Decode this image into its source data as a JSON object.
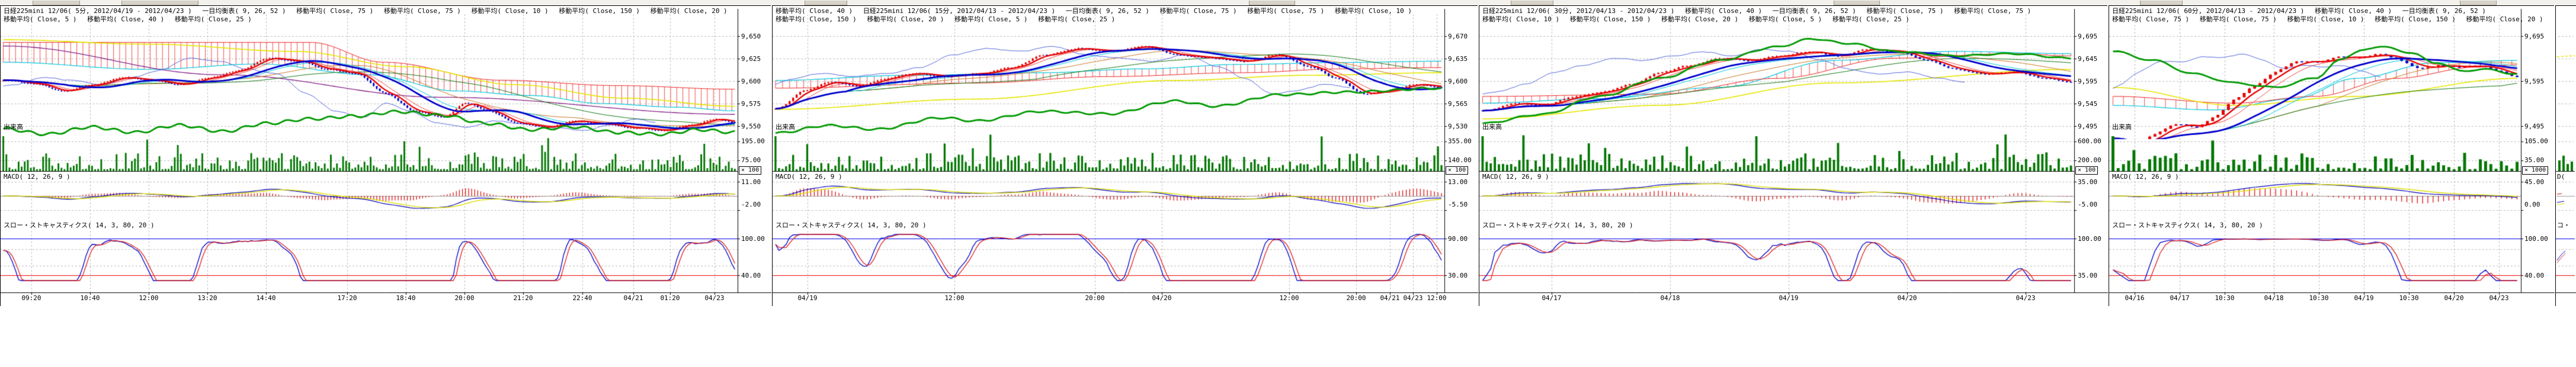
{
  "instrument": "日経225mini 12/06",
  "colors": {
    "candle_up": "#e60000",
    "candle_down": "#0000cc",
    "volume_bar": "#007700",
    "ma_green": "#009900",
    "ma_yellow": "#e6e600",
    "ma_purple": "#882288",
    "cloud_hatch": "#ee2222",
    "cloud_edge": "#00c8dc",
    "macd_line": "#0000bb",
    "macd_signal": "#dddd00",
    "macd_hist": "#dd0000",
    "stoch_k": "#0000cc",
    "stoch_d": "#dd2222",
    "band_top": "#0000ee",
    "band_bottom": "#ee0000",
    "grid": "#bcbcbc"
  },
  "panels": [
    {
      "title_line1": "日経225mini 12/06( 5分, 2012/04/19 - 2012/04/23 )　 一目均衡表( 9, 26, 52 )　 移動平均( Close, 75 )　 移動平均( Close, 75 )　 移動平均( Close, 10 )　 移動平均( Close, 150 )　 移動平均( Close, 20 )",
      "title_line2": "移動平均( Close, 5 )　 移動平均( Close, 40 )　 移動平均( Close, 25 )",
      "sections": {
        "volume": "出来高",
        "macd": "MACD( 12, 26, 9 )",
        "stochastics": "スロー・ストキャスティクス( 14, 3, 80, 20 )"
      },
      "y_axis": {
        "price": [
          "9,650",
          "9,625",
          "9,600",
          "9,575",
          "9,550"
        ],
        "volume": [
          "195.00",
          "75.00"
        ],
        "multiplier": "× 100",
        "macd": [
          "11.00",
          "-2.00"
        ],
        "stochastics": [
          "100.00",
          "40.00"
        ]
      },
      "x_axis": {
        "labels": [
          "09:20",
          "10:40",
          "12:00",
          "13:20",
          "14:40",
          "17:20",
          "18:40",
          "20:00",
          "21:20",
          "22:40",
          "04/21",
          "01:20",
          "04/23"
        ],
        "positions": [
          0.04,
          0.12,
          0.2,
          0.28,
          0.36,
          0.47,
          0.55,
          0.63,
          0.71,
          0.79,
          0.86,
          0.91,
          0.97
        ]
      },
      "chart_data": {
        "type": "candlestick",
        "bars": 240,
        "seed": 11,
        "close_anchors": [
          [
            0,
            9601
          ],
          [
            0.04,
            9597
          ],
          [
            0.08,
            9589
          ],
          [
            0.12,
            9596
          ],
          [
            0.16,
            9604
          ],
          [
            0.2,
            9601
          ],
          [
            0.24,
            9596
          ],
          [
            0.28,
            9604
          ],
          [
            0.32,
            9612
          ],
          [
            0.36,
            9626
          ],
          [
            0.4,
            9622
          ],
          [
            0.44,
            9613
          ],
          [
            0.48,
            9608
          ],
          [
            0.52,
            9586
          ],
          [
            0.56,
            9566
          ],
          [
            0.6,
            9560
          ],
          [
            0.63,
            9576
          ],
          [
            0.66,
            9567
          ],
          [
            0.7,
            9553
          ],
          [
            0.74,
            9549
          ],
          [
            0.78,
            9556
          ],
          [
            0.82,
            9552
          ],
          [
            0.86,
            9548
          ],
          [
            0.9,
            9545
          ],
          [
            0.94,
            9552
          ],
          [
            0.97,
            9558
          ],
          [
            1,
            9554
          ]
        ],
        "green_anchors": [
          [
            0,
            9547
          ],
          [
            0.06,
            9541
          ],
          [
            0.12,
            9549
          ],
          [
            0.18,
            9543
          ],
          [
            0.24,
            9551
          ],
          [
            0.3,
            9544
          ],
          [
            0.36,
            9553
          ],
          [
            0.42,
            9558
          ],
          [
            0.48,
            9561
          ],
          [
            0.54,
            9566
          ],
          [
            0.6,
            9562
          ],
          [
            0.66,
            9553
          ],
          [
            0.72,
            9546
          ],
          [
            0.78,
            9549
          ],
          [
            0.84,
            9543
          ],
          [
            0.9,
            9541
          ],
          [
            0.95,
            9546
          ],
          [
            1,
            9543
          ]
        ],
        "yellow_anchors": [
          [
            0,
            9646
          ],
          [
            0.2,
            9641
          ],
          [
            0.4,
            9633
          ],
          [
            0.55,
            9616
          ],
          [
            0.7,
            9596
          ],
          [
            0.85,
            9581
          ],
          [
            1,
            9572
          ]
        ],
        "purple_anchors": [
          [
            0,
            9639
          ],
          [
            0.3,
            9607
          ],
          [
            0.6,
            9582
          ],
          [
            1,
            9563
          ]
        ],
        "cloud_a_anchors": [
          [
            0,
            9621
          ],
          [
            0.2,
            9613
          ],
          [
            0.35,
            9619
          ],
          [
            0.5,
            9607
          ],
          [
            0.62,
            9589
          ],
          [
            0.72,
            9584
          ],
          [
            0.82,
            9575
          ],
          [
            0.92,
            9571
          ],
          [
            1,
            9567
          ]
        ],
        "cloud_b_anchors": [
          [
            0,
            9643
          ],
          [
            0.42,
            9643
          ],
          [
            0.52,
            9621
          ],
          [
            0.68,
            9601
          ],
          [
            0.84,
            9595
          ],
          [
            1,
            9591
          ]
        ]
      }
    },
    {
      "title_line1": "移動平均( Close, 40 )　 日経225mini 12/06( 15分, 2012/04/13 - 2012/04/23 )　 一目均衡表( 9, 26, 52 )　 移動平均( Close, 75 )　 移動平均( Close, 75 )　 移動平均( Close, 10 )",
      "title_line2": "移動平均( Close, 150 )　 移動平均( Close, 20 )　 移動平均( Close, 5 )　 移動平均( Close, 25 )",
      "sections": {
        "volume": "出来高",
        "macd": "MACD( 12, 26, 9 )",
        "stochastics": "スロー・ストキャスティクス( 14, 3, 80, 20 )"
      },
      "y_axis": {
        "price": [
          "9,670",
          "9,635",
          "9,600",
          "9,565",
          "9,530"
        ],
        "volume": [
          "355.00",
          "140.00"
        ],
        "multiplier": "× 100",
        "macd": [
          "13.00",
          "-5.50"
        ],
        "stochastics": [
          "90.00",
          "30.00"
        ]
      },
      "x_axis": {
        "labels": [
          "04/19",
          "12:00",
          "20:00",
          "04/20",
          "12:00",
          "20:00",
          "04/21",
          "04/23",
          "12:00"
        ],
        "positions": [
          0.05,
          0.27,
          0.48,
          0.58,
          0.77,
          0.87,
          0.92,
          0.955,
          0.99
        ]
      },
      "chart_data": {
        "type": "candlestick",
        "bars": 190,
        "seed": 23,
        "close_anchors": [
          [
            0,
            9558
          ],
          [
            0.04,
            9586
          ],
          [
            0.08,
            9599
          ],
          [
            0.12,
            9592
          ],
          [
            0.16,
            9603
          ],
          [
            0.2,
            9612
          ],
          [
            0.25,
            9607
          ],
          [
            0.3,
            9612
          ],
          [
            0.35,
            9621
          ],
          [
            0.4,
            9641
          ],
          [
            0.45,
            9651
          ],
          [
            0.5,
            9646
          ],
          [
            0.55,
            9654
          ],
          [
            0.6,
            9641
          ],
          [
            0.65,
            9636
          ],
          [
            0.7,
            9631
          ],
          [
            0.75,
            9641
          ],
          [
            0.8,
            9622
          ],
          [
            0.84,
            9603
          ],
          [
            0.88,
            9579
          ],
          [
            0.92,
            9586
          ],
          [
            0.96,
            9596
          ],
          [
            1,
            9589
          ]
        ],
        "green_anchors": [
          [
            0,
            9519
          ],
          [
            0.08,
            9531
          ],
          [
            0.15,
            9525
          ],
          [
            0.25,
            9543
          ],
          [
            0.3,
            9538
          ],
          [
            0.4,
            9553
          ],
          [
            0.5,
            9549
          ],
          [
            0.6,
            9569
          ],
          [
            0.66,
            9561
          ],
          [
            0.76,
            9579
          ],
          [
            0.86,
            9583
          ],
          [
            1,
            9589
          ]
        ],
        "yellow_anchors": [
          [
            0,
            9556
          ],
          [
            0.3,
            9572
          ],
          [
            0.6,
            9601
          ],
          [
            0.8,
            9609
          ],
          [
            1,
            9613
          ]
        ],
        "cloud_a_anchors": [
          [
            0,
            9601
          ],
          [
            0.2,
            9609
          ],
          [
            0.4,
            9613
          ],
          [
            0.55,
            9619
          ],
          [
            0.7,
            9626
          ],
          [
            0.85,
            9629
          ],
          [
            1,
            9631
          ]
        ],
        "cloud_b_anchors": [
          [
            0,
            9589
          ],
          [
            0.3,
            9597
          ],
          [
            0.5,
            9607
          ],
          [
            0.7,
            9613
          ],
          [
            0.85,
            9619
          ],
          [
            1,
            9621
          ]
        ]
      }
    },
    {
      "title_line1": "日経225mini 12/06( 30分, 2012/04/13 - 2012/04/23 )　 移動平均( Close, 40 )　 一目均衡表( 9, 26, 52 )　 移動平均( Close, 75 )　 移動平均( Close, 75 )",
      "title_line2": "移動平均( Close, 10 )　 移動平均( Close, 150 )　 移動平均( Close, 20 )　 移動平均( Close, 5 )　 移動平均( Close, 25 )",
      "sections": {
        "volume": "出来高",
        "macd": "MACD( 12, 26, 9 )",
        "stochastics": "スロー・ストキャスティクス( 14, 3, 80, 20 )"
      },
      "y_axis": {
        "price": [
          "9,695",
          "9,645",
          "9,595",
          "9,545",
          "9,495"
        ],
        "volume": [
          "600.00",
          "200.00"
        ],
        "multiplier": "× 100",
        "macd": [
          "35.00",
          "-5.00"
        ],
        "stochastics": [
          "100.00",
          "35.00"
        ]
      },
      "x_axis": {
        "labels": [
          "04/17",
          "04/18",
          "04/19",
          "04/20",
          "04/23"
        ],
        "positions": [
          0.12,
          0.32,
          0.52,
          0.72,
          0.92
        ]
      },
      "chart_data": {
        "type": "candlestick",
        "bars": 145,
        "seed": 37,
        "close_anchors": [
          [
            0,
            9529
          ],
          [
            0.05,
            9546
          ],
          [
            0.1,
            9541
          ],
          [
            0.15,
            9561
          ],
          [
            0.2,
            9571
          ],
          [
            0.25,
            9589
          ],
          [
            0.3,
            9616
          ],
          [
            0.35,
            9631
          ],
          [
            0.4,
            9646
          ],
          [
            0.45,
            9641
          ],
          [
            0.5,
            9651
          ],
          [
            0.55,
            9661
          ],
          [
            0.6,
            9651
          ],
          [
            0.65,
            9666
          ],
          [
            0.7,
            9661
          ],
          [
            0.75,
            9641
          ],
          [
            0.8,
            9621
          ],
          [
            0.85,
            9611
          ],
          [
            0.9,
            9616
          ],
          [
            0.95,
            9601
          ],
          [
            1,
            9591
          ]
        ],
        "green_anchors": [
          [
            0,
            9501
          ],
          [
            0.1,
            9521
          ],
          [
            0.2,
            9561
          ],
          [
            0.3,
            9601
          ],
          [
            0.4,
            9641
          ],
          [
            0.5,
            9671
          ],
          [
            0.56,
            9689
          ],
          [
            0.62,
            9679
          ],
          [
            0.7,
            9661
          ],
          [
            0.8,
            9651
          ],
          [
            0.9,
            9656
          ],
          [
            1,
            9646
          ]
        ],
        "yellow_anchors": [
          [
            0,
            9511
          ],
          [
            0.3,
            9541
          ],
          [
            0.6,
            9591
          ],
          [
            1,
            9621
          ]
        ],
        "cloud_a_anchors": [
          [
            0,
            9546
          ],
          [
            0.2,
            9556
          ],
          [
            0.4,
            9581
          ],
          [
            0.6,
            9641
          ],
          [
            0.8,
            9661
          ],
          [
            1,
            9656
          ]
        ],
        "cloud_b_anchors": [
          [
            0,
            9561
          ],
          [
            0.3,
            9566
          ],
          [
            0.5,
            9601
          ],
          [
            0.7,
            9646
          ],
          [
            0.9,
            9656
          ],
          [
            1,
            9651
          ]
        ]
      }
    },
    {
      "title_line1": "日経225mini 12/06( 60分, 2012/04/13 - 2012/04/23 )　 移動平均( Close, 40 )　 一目均衡表( 9, 26, 52 )",
      "title_line2": "移動平均( Close, 75 )　 移動平均( Close, 75 )　 移動平均( Close, 10 )　 移動平均( Close, 150 )　 移動平均( Close, 20 )",
      "sections": {
        "volume": "出来高",
        "macd": "MACD( 12, 26, 9 )",
        "stochastics": "スロー・ストキャスティクス( 14, 3, 80, 20 )"
      },
      "y_axis": {
        "price": [
          "9,695",
          "9,595",
          "9,495"
        ],
        "volume": [
          "105.00",
          "35.00"
        ],
        "multiplier": "× 1000",
        "macd": [
          "45.00",
          "0.00"
        ],
        "stochastics": [
          "100.00",
          "40.00"
        ]
      },
      "x_axis": {
        "labels": [
          "04/16",
          "04/17",
          "10:30",
          "04/18",
          "10:30",
          "04/19",
          "10:30",
          "04/20",
          "04/23"
        ],
        "positions": [
          0.06,
          0.17,
          0.28,
          0.4,
          0.51,
          0.62,
          0.73,
          0.84,
          0.95
        ]
      },
      "chart_data": {
        "type": "candlestick",
        "bars": 78,
        "seed": 53,
        "close_anchors": [
          [
            0,
            9469
          ],
          [
            0.05,
            9451
          ],
          [
            0.1,
            9481
          ],
          [
            0.15,
            9501
          ],
          [
            0.2,
            9491
          ],
          [
            0.25,
            9521
          ],
          [
            0.3,
            9561
          ],
          [
            0.35,
            9591
          ],
          [
            0.4,
            9621
          ],
          [
            0.45,
            9641
          ],
          [
            0.5,
            9636
          ],
          [
            0.55,
            9651
          ],
          [
            0.6,
            9646
          ],
          [
            0.65,
            9656
          ],
          [
            0.7,
            9641
          ],
          [
            0.75,
            9621
          ],
          [
            0.8,
            9631
          ],
          [
            0.85,
            9626
          ],
          [
            0.9,
            9631
          ],
          [
            0.95,
            9616
          ],
          [
            1,
            9601
          ]
        ],
        "green_anchors": [
          [
            0,
            9661
          ],
          [
            0.1,
            9641
          ],
          [
            0.2,
            9611
          ],
          [
            0.3,
            9591
          ],
          [
            0.4,
            9581
          ],
          [
            0.5,
            9601
          ],
          [
            0.56,
            9641
          ],
          [
            0.62,
            9666
          ],
          [
            0.68,
            9671
          ],
          [
            0.74,
            9656
          ],
          [
            0.8,
            9636
          ],
          [
            0.86,
            9618
          ],
          [
            0.92,
            9621
          ],
          [
            1,
            9611
          ]
        ],
        "yellow_anchors": [
          [
            0,
            9581
          ],
          [
            0.3,
            9541
          ],
          [
            0.6,
            9561
          ],
          [
            1,
            9601
          ]
        ],
        "cloud_a_anchors": [
          [
            0,
            9541
          ],
          [
            0.25,
            9531
          ],
          [
            0.45,
            9556
          ],
          [
            0.6,
            9601
          ],
          [
            0.8,
            9636
          ],
          [
            1,
            9641
          ]
        ],
        "cloud_b_anchors": [
          [
            0,
            9561
          ],
          [
            0.3,
            9546
          ],
          [
            0.5,
            9561
          ],
          [
            0.7,
            9601
          ],
          [
            0.9,
            9626
          ],
          [
            1,
            9631
          ]
        ]
      }
    }
  ],
  "partial_panel": {
    "fragments": {
      "macd": "D(",
      "stochastics": "コ・"
    }
  }
}
